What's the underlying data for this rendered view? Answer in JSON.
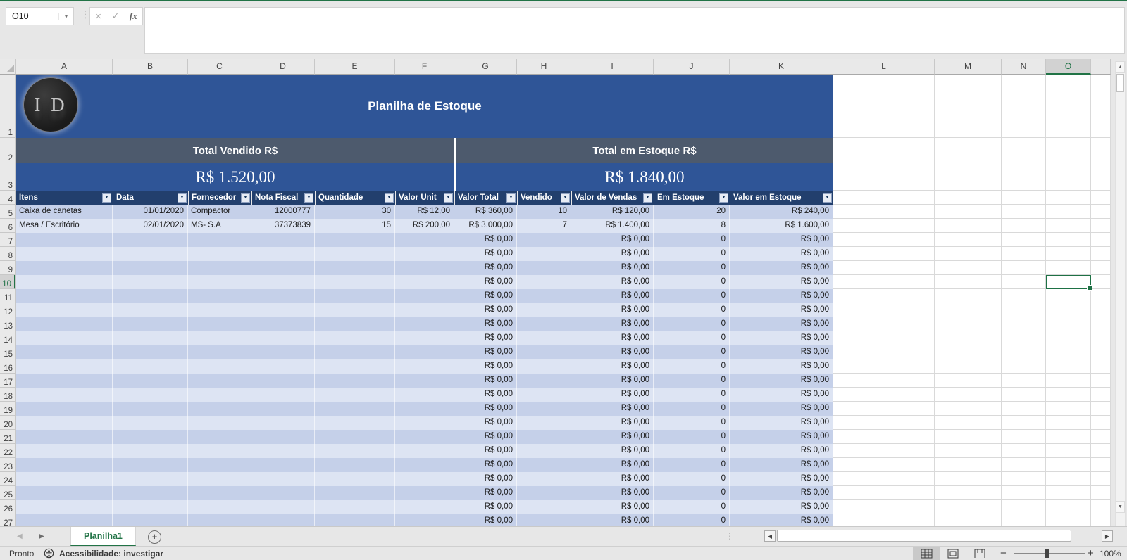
{
  "name_box": {
    "value": "O10"
  },
  "formula_bar": {
    "cancel_icon": "×",
    "enter_icon": "✓",
    "fx_icon": "fx"
  },
  "grid": {
    "column_letters": [
      "A",
      "B",
      "C",
      "D",
      "E",
      "F",
      "G",
      "H",
      "I",
      "J",
      "K",
      "L",
      "M",
      "N",
      "O",
      ""
    ],
    "selected_column": "O",
    "row_numbers": [
      1,
      2,
      3,
      4,
      5,
      6,
      7,
      8,
      9,
      10,
      11,
      12,
      13,
      14,
      15,
      16,
      17,
      18,
      19,
      20,
      21,
      22,
      23,
      24,
      25,
      26,
      27
    ],
    "selected_row": 10,
    "selected_cell": "O10"
  },
  "banner": {
    "logo_text": "I D",
    "title": "Planilha de Estoque",
    "bg": "#2F5597"
  },
  "totals": {
    "vendido_label": "Total Vendido R$",
    "vendido_value": "R$ 1.520,00",
    "estoque_label": "Total em Estoque R$",
    "estoque_value": "R$ 1.840,00",
    "band_bg": "#4D5A6D"
  },
  "table": {
    "headers": [
      "Itens",
      "Data",
      "Fornecedor",
      "Nota Fiscal",
      "Quantidade",
      "Valor Unit",
      "Valor Total",
      "Vendido",
      "Valor de Vendas",
      "Em Estoque",
      "Valor em Estoque"
    ],
    "data_rows": [
      [
        "Caixa de canetas",
        "01/01/2020",
        "Compactor",
        "12000777",
        "30",
        "R$ 12,00",
        "R$ 360,00",
        "10",
        "R$ 120,00",
        "20",
        "R$ 240,00"
      ],
      [
        "Mesa / Escritório",
        "02/01/2020",
        "MS- S.A",
        "37373839",
        "15",
        "R$ 200,00",
        "R$ 3.000,00",
        "7",
        "R$ 1.400,00",
        "8",
        "R$ 1.600,00"
      ]
    ],
    "empty_row": [
      "",
      "",
      "",
      "",
      "",
      "",
      "R$ 0,00",
      "",
      "R$ 0,00",
      "0",
      "R$ 0,00"
    ],
    "empty_row_count": 21,
    "header_bg": "#223F6D",
    "band_dark": "#C5D0E9",
    "band_light": "#DDE4F3"
  },
  "sheet_tabs": {
    "active": "Planilha1",
    "add_label": "+"
  },
  "status_bar": {
    "ready": "Pronto",
    "accessibility": "Acessibilidade: investigar",
    "zoom": "100%"
  },
  "theme": {
    "excel_green": "#217346",
    "selection_green": "#1E7145"
  }
}
